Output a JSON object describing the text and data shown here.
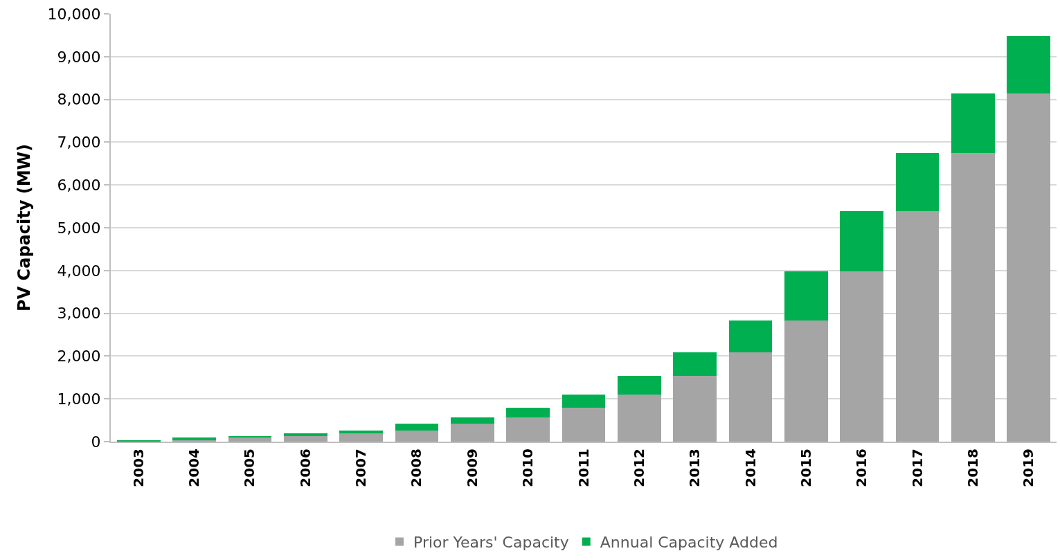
{
  "chart_data": {
    "type": "bar",
    "stacked": true,
    "ylabel": "PV Capacity (MW)",
    "categories": [
      "2003",
      "2004",
      "2005",
      "2006",
      "2007",
      "2008",
      "2009",
      "2010",
      "2011",
      "2012",
      "2013",
      "2014",
      "2015",
      "2016",
      "2017",
      "2018",
      "2019"
    ],
    "series": [
      {
        "name": "Prior Years' Capacity",
        "color": "#a5a5a5",
        "values": [
          0,
          40,
          90,
          130,
          190,
          265,
          425,
          560,
          800,
          1100,
          1540,
          2090,
          2830,
          3980,
          5390,
          6745,
          8140
        ]
      },
      {
        "name": "Annual Capacity Added",
        "color": "#00b050",
        "values": [
          40,
          50,
          40,
          60,
          75,
          160,
          135,
          240,
          300,
          440,
          550,
          740,
          1150,
          1410,
          1355,
          1395,
          1340
        ]
      }
    ],
    "ylim": [
      0,
      10000
    ],
    "yticks": [
      {
        "value": 0,
        "label": "0"
      },
      {
        "value": 1000,
        "label": "1,000"
      },
      {
        "value": 2000,
        "label": "2,000"
      },
      {
        "value": 3000,
        "label": "3,000"
      },
      {
        "value": 4000,
        "label": "4,000"
      },
      {
        "value": 5000,
        "label": "5,000"
      },
      {
        "value": 6000,
        "label": "6,000"
      },
      {
        "value": 7000,
        "label": "7,000"
      },
      {
        "value": 8000,
        "label": "8,000"
      },
      {
        "value": 9000,
        "label": "9,000"
      },
      {
        "value": 10000,
        "label": "10,000"
      }
    ],
    "grid": "y",
    "legend": "bottom"
  }
}
